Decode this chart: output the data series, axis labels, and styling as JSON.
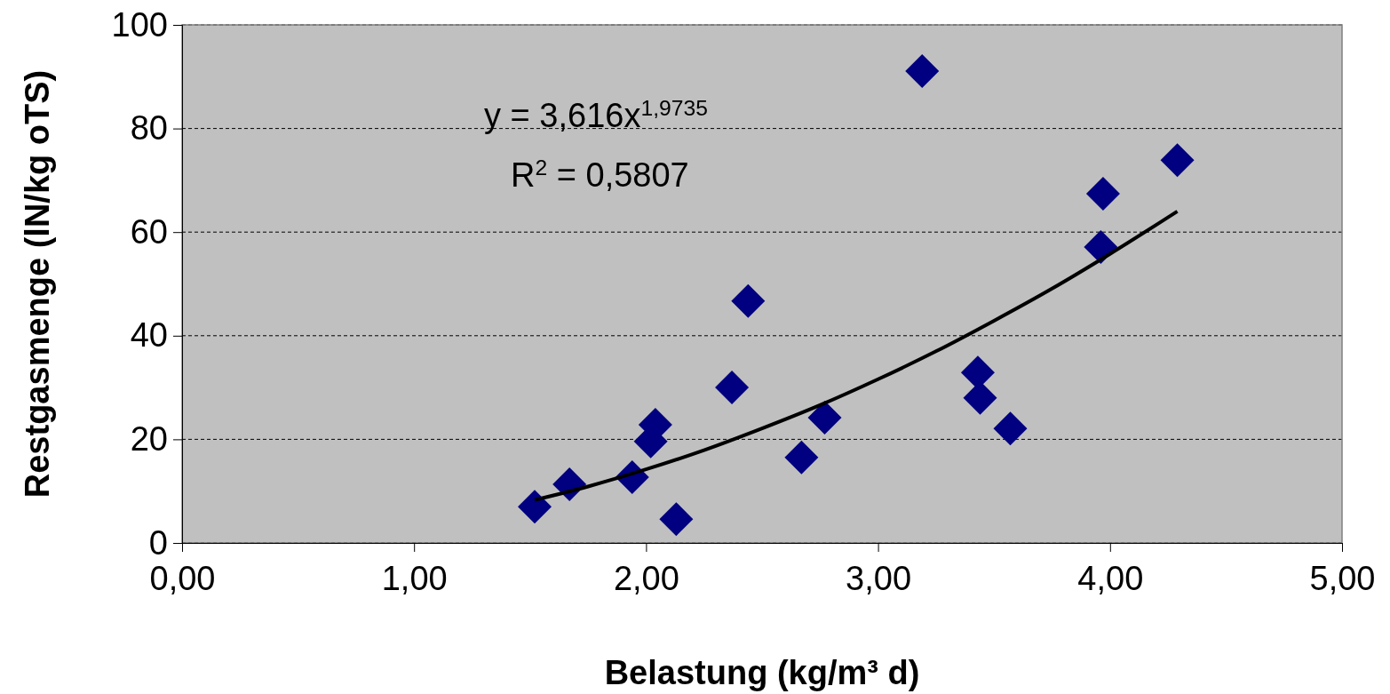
{
  "chart_data": {
    "type": "scatter",
    "xlabel": "Belastung (kg/m³ d)",
    "ylabel": "Restgasmenge (lN/kg oTS)",
    "xlim": [
      0,
      5
    ],
    "xticks": [
      {
        "value": 0,
        "label": "0,00"
      },
      {
        "value": 1,
        "label": "1,00"
      },
      {
        "value": 2,
        "label": "2,00"
      },
      {
        "value": 3,
        "label": "3,00"
      },
      {
        "value": 4,
        "label": "4,00"
      },
      {
        "value": 5,
        "label": "5,00"
      }
    ],
    "ylim": [
      0,
      100
    ],
    "yticks": [
      0,
      20,
      40,
      60,
      80,
      100
    ],
    "grid": "y",
    "marker": "diamond",
    "series": [
      {
        "color": "#000080",
        "x": [
          1.52,
          1.67,
          1.94,
          2.02,
          2.04,
          2.13,
          2.37,
          2.44,
          2.67,
          2.77,
          3.19,
          3.43,
          3.44,
          3.57,
          3.96,
          3.97,
          4.29
        ],
        "values": [
          7.0,
          11.3,
          12.7,
          19.6,
          22.8,
          4.6,
          30.0,
          46.7,
          16.5,
          24.2,
          91.1,
          32.9,
          28.0,
          22.1,
          57.1,
          67.4,
          73.9
        ]
      },
      {
        "type": "line",
        "color": "#000000",
        "marker": "none",
        "line_style": "solid",
        "x": [
          1.52,
          1.75,
          2,
          2.25,
          2.5,
          2.75,
          3,
          3.25,
          3.5,
          3.75,
          4,
          4.29
        ],
        "values": [
          8.3,
          10.9,
          14.2,
          17.9,
          22.1,
          26.6,
          31.6,
          37.0,
          42.9,
          49.1,
          55.8,
          64.0
        ]
      }
    ],
    "annotations": [
      "y = 3,616x$^{1,9735}$",
      "R$^{2}$ = 0,5807"
    ]
  }
}
